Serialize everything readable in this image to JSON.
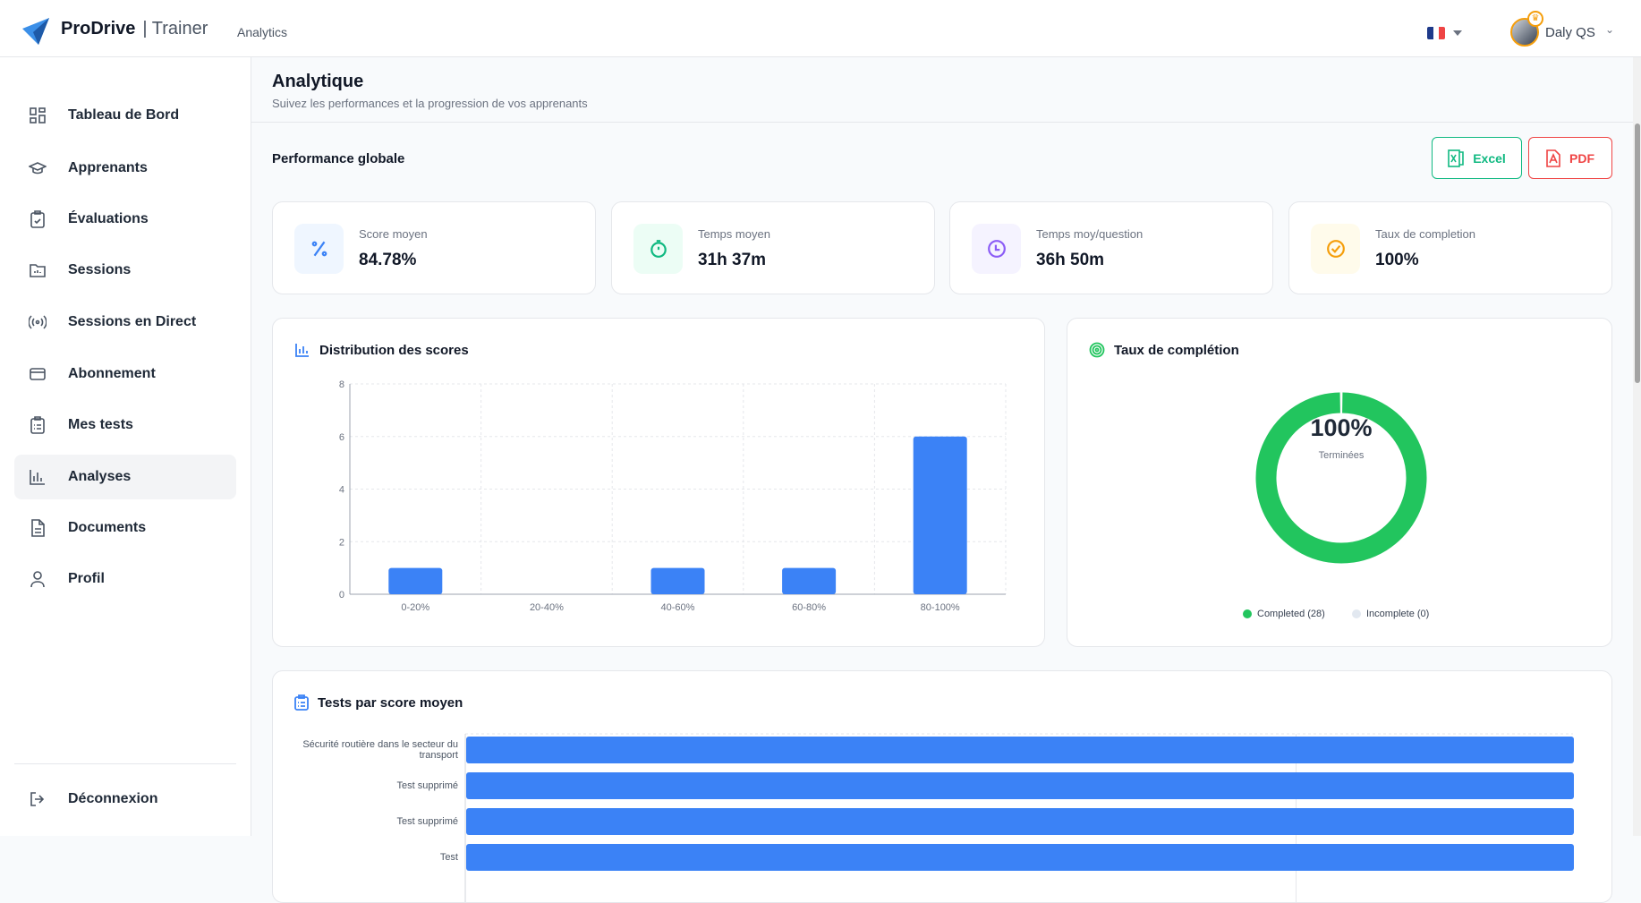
{
  "header": {
    "brand": "ProDrive",
    "brand_sub": "| Trainer",
    "breadcrumb": "Analytics",
    "user_name": "Daly QS",
    "language": "fr"
  },
  "sidebar": {
    "items": [
      {
        "label": "Tableau de Bord",
        "icon": "grid-icon"
      },
      {
        "label": "Apprenants",
        "icon": "graduation-cap-icon"
      },
      {
        "label": "Évaluations",
        "icon": "clipboard-check-icon"
      },
      {
        "label": "Sessions",
        "icon": "folder-icon"
      },
      {
        "label": "Sessions en Direct",
        "icon": "broadcast-icon"
      },
      {
        "label": "Abonnement",
        "icon": "credit-card-icon"
      },
      {
        "label": "Mes tests",
        "icon": "clipboard-list-icon"
      },
      {
        "label": "Analyses",
        "icon": "bar-chart-icon",
        "active": true
      },
      {
        "label": "Documents",
        "icon": "file-text-icon"
      },
      {
        "label": "Profil",
        "icon": "user-icon"
      }
    ],
    "logout": "Déconnexion"
  },
  "page": {
    "title": "Analytique",
    "subtitle": "Suivez les performances et la progression de vos apprenants",
    "section": "Performance globale",
    "excel": "Excel",
    "pdf": "PDF"
  },
  "stats": [
    {
      "label": "Score moyen",
      "value": "84.78%",
      "color": "#3b82f6",
      "bg": "#eff6ff",
      "icon": "percent-icon"
    },
    {
      "label": "Temps moyen",
      "value": "31h 37m",
      "color": "#10b981",
      "bg": "#ecfdf5",
      "icon": "stopwatch-icon"
    },
    {
      "label": "Temps moy/question",
      "value": "36h 50m",
      "color": "#8b5cf6",
      "bg": "#f5f3ff",
      "icon": "clock-icon"
    },
    {
      "label": "Taux de completion",
      "value": "100%",
      "color": "#f59e0b",
      "bg": "#fffbeb",
      "icon": "check-circle-icon"
    }
  ],
  "chart_data": [
    {
      "type": "bar",
      "title": "Distribution des scores",
      "categories": [
        "0-20%",
        "20-40%",
        "40-60%",
        "60-80%",
        "80-100%"
      ],
      "values": [
        1,
        0,
        1,
        1,
        6
      ],
      "ylim": [
        0,
        8
      ],
      "yticks": [
        "0",
        "2",
        "4",
        "6",
        "8"
      ],
      "grid": true,
      "color": "#3b82f6"
    },
    {
      "type": "pie",
      "title": "Taux de complétion",
      "center_value": "100%",
      "center_label": "Terminées",
      "slices": [
        {
          "name": "Completed (28)",
          "value": 28,
          "color": "#22c55e"
        },
        {
          "name": "Incomplete (0)",
          "value": 0,
          "color": "#e2e8f0"
        }
      ],
      "legend": "bottom"
    },
    {
      "type": "bar",
      "orientation": "horizontal",
      "title": "Tests par score moyen",
      "categories": [
        "Sécurité routière dans le secteur du transport",
        "Test supprimé",
        "Test supprimé",
        "Test"
      ],
      "values": [
        100,
        100,
        100,
        100
      ],
      "color": "#3b82f6"
    }
  ]
}
